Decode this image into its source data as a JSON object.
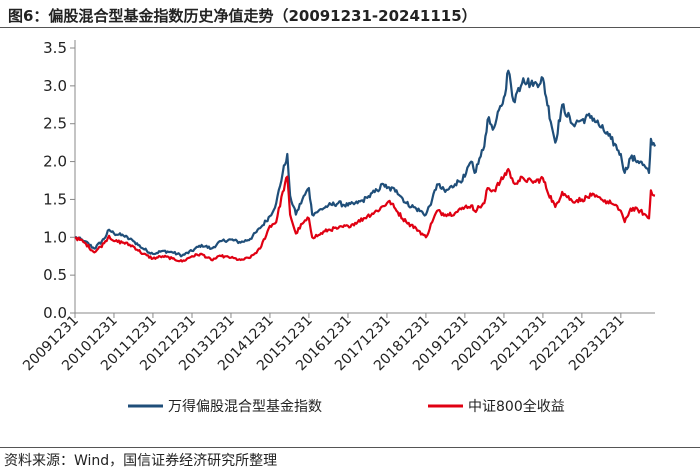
{
  "header": {
    "title": "图6：偏股混合型基金指数历史净值走势（20091231-20241115）"
  },
  "footer": {
    "source": "资料来源：Wind，国信证券经济研究所整理"
  },
  "colors": {
    "series1": "#1F4E79",
    "series2": "#E00012",
    "axis": "#888888"
  },
  "chart_data": {
    "type": "line",
    "title": "图6：偏股混合型基金指数历史净值走势（20091231-20241115）",
    "xlabel": "",
    "ylabel": "",
    "ylim": [
      0,
      3.5
    ],
    "yticks": [
      "0.0",
      "0.5",
      "1.0",
      "1.5",
      "2.0",
      "2.5",
      "3.0",
      "3.5"
    ],
    "xticks": [
      "20091231",
      "20101231",
      "20111231",
      "20121231",
      "20131231",
      "20141231",
      "20151231",
      "20161231",
      "20171231",
      "20181231",
      "20191231",
      "20201231",
      "20211231",
      "20221231",
      "20231231"
    ],
    "x_start": "2009-12-31",
    "x_end": "2024-11-15",
    "grid": false,
    "legend_position": "bottom",
    "series": [
      {
        "name": "万得偏股混合型基金指数",
        "points": [
          [
            "2009-12-31",
            1.0
          ],
          [
            "2010-03-31",
            0.95
          ],
          [
            "2010-06-30",
            0.85
          ],
          [
            "2010-09-30",
            0.98
          ],
          [
            "2010-11-15",
            1.1
          ],
          [
            "2010-12-31",
            1.05
          ],
          [
            "2011-03-31",
            1.02
          ],
          [
            "2011-06-30",
            0.95
          ],
          [
            "2011-09-30",
            0.85
          ],
          [
            "2011-12-31",
            0.78
          ],
          [
            "2012-03-31",
            0.82
          ],
          [
            "2012-06-30",
            0.8
          ],
          [
            "2012-09-30",
            0.76
          ],
          [
            "2012-12-31",
            0.82
          ],
          [
            "2013-03-31",
            0.9
          ],
          [
            "2013-06-30",
            0.85
          ],
          [
            "2013-09-30",
            0.95
          ],
          [
            "2013-12-31",
            0.97
          ],
          [
            "2014-03-31",
            0.93
          ],
          [
            "2014-06-30",
            0.98
          ],
          [
            "2014-09-30",
            1.12
          ],
          [
            "2014-12-31",
            1.28
          ],
          [
            "2015-02-28",
            1.45
          ],
          [
            "2015-04-30",
            1.85
          ],
          [
            "2015-06-12",
            2.1
          ],
          [
            "2015-07-08",
            1.55
          ],
          [
            "2015-08-31",
            1.3
          ],
          [
            "2015-10-31",
            1.5
          ],
          [
            "2015-12-31",
            1.65
          ],
          [
            "2016-01-31",
            1.3
          ],
          [
            "2016-03-31",
            1.35
          ],
          [
            "2016-06-30",
            1.42
          ],
          [
            "2016-09-30",
            1.45
          ],
          [
            "2016-12-31",
            1.42
          ],
          [
            "2017-03-31",
            1.45
          ],
          [
            "2017-06-30",
            1.52
          ],
          [
            "2017-09-30",
            1.62
          ],
          [
            "2017-11-30",
            1.7
          ],
          [
            "2017-12-31",
            1.65
          ],
          [
            "2018-03-31",
            1.62
          ],
          [
            "2018-06-30",
            1.45
          ],
          [
            "2018-09-30",
            1.38
          ],
          [
            "2018-12-31",
            1.3
          ],
          [
            "2019-02-28",
            1.5
          ],
          [
            "2019-04-15",
            1.7
          ],
          [
            "2019-06-30",
            1.6
          ],
          [
            "2019-09-30",
            1.7
          ],
          [
            "2019-12-31",
            1.8
          ],
          [
            "2020-02-28",
            2.0
          ],
          [
            "2020-03-31",
            1.85
          ],
          [
            "2020-06-30",
            2.2
          ],
          [
            "2020-07-31",
            2.55
          ],
          [
            "2020-09-30",
            2.45
          ],
          [
            "2020-12-31",
            2.85
          ],
          [
            "2021-02-10",
            3.2
          ],
          [
            "2021-03-31",
            2.8
          ],
          [
            "2021-06-30",
            3.1
          ],
          [
            "2021-09-30",
            3.0
          ],
          [
            "2021-12-31",
            3.1
          ],
          [
            "2022-01-31",
            2.85
          ],
          [
            "2022-04-26",
            2.25
          ],
          [
            "2022-06-30",
            2.75
          ],
          [
            "2022-09-30",
            2.5
          ],
          [
            "2022-12-31",
            2.55
          ],
          [
            "2023-03-31",
            2.6
          ],
          [
            "2023-06-30",
            2.45
          ],
          [
            "2023-09-30",
            2.3
          ],
          [
            "2023-12-31",
            2.1
          ],
          [
            "2024-02-05",
            1.85
          ],
          [
            "2024-03-31",
            2.05
          ],
          [
            "2024-06-30",
            2.0
          ],
          [
            "2024-09-20",
            1.85
          ],
          [
            "2024-10-08",
            2.3
          ],
          [
            "2024-11-15",
            2.2
          ]
        ]
      },
      {
        "name": "中证800全收益",
        "points": [
          [
            "2009-12-31",
            1.0
          ],
          [
            "2010-03-31",
            0.93
          ],
          [
            "2010-06-30",
            0.8
          ],
          [
            "2010-09-30",
            0.92
          ],
          [
            "2010-11-15",
            1.02
          ],
          [
            "2010-12-31",
            0.95
          ],
          [
            "2011-03-31",
            0.93
          ],
          [
            "2011-06-30",
            0.88
          ],
          [
            "2011-09-30",
            0.78
          ],
          [
            "2011-12-31",
            0.72
          ],
          [
            "2012-03-31",
            0.75
          ],
          [
            "2012-06-30",
            0.72
          ],
          [
            "2012-09-30",
            0.68
          ],
          [
            "2012-12-31",
            0.75
          ],
          [
            "2013-03-31",
            0.78
          ],
          [
            "2013-06-30",
            0.7
          ],
          [
            "2013-09-30",
            0.75
          ],
          [
            "2013-12-31",
            0.73
          ],
          [
            "2014-03-31",
            0.7
          ],
          [
            "2014-06-30",
            0.73
          ],
          [
            "2014-09-30",
            0.85
          ],
          [
            "2014-12-31",
            1.15
          ],
          [
            "2015-02-28",
            1.2
          ],
          [
            "2015-04-30",
            1.6
          ],
          [
            "2015-06-12",
            1.8
          ],
          [
            "2015-07-08",
            1.3
          ],
          [
            "2015-08-31",
            1.05
          ],
          [
            "2015-10-31",
            1.18
          ],
          [
            "2015-12-31",
            1.25
          ],
          [
            "2016-01-31",
            1.0
          ],
          [
            "2016-03-31",
            1.03
          ],
          [
            "2016-06-30",
            1.1
          ],
          [
            "2016-09-30",
            1.12
          ],
          [
            "2016-12-31",
            1.15
          ],
          [
            "2017-03-31",
            1.2
          ],
          [
            "2017-06-30",
            1.28
          ],
          [
            "2017-09-30",
            1.35
          ],
          [
            "2017-12-31",
            1.45
          ],
          [
            "2018-01-25",
            1.48
          ],
          [
            "2018-03-31",
            1.35
          ],
          [
            "2018-06-30",
            1.2
          ],
          [
            "2018-09-30",
            1.12
          ],
          [
            "2018-12-31",
            1.0
          ],
          [
            "2019-02-28",
            1.2
          ],
          [
            "2019-04-15",
            1.35
          ],
          [
            "2019-06-30",
            1.3
          ],
          [
            "2019-09-30",
            1.32
          ],
          [
            "2019-12-31",
            1.4
          ],
          [
            "2020-02-28",
            1.42
          ],
          [
            "2020-03-31",
            1.35
          ],
          [
            "2020-06-30",
            1.45
          ],
          [
            "2020-07-31",
            1.65
          ],
          [
            "2020-09-30",
            1.62
          ],
          [
            "2020-12-31",
            1.8
          ],
          [
            "2021-02-10",
            1.9
          ],
          [
            "2021-03-31",
            1.72
          ],
          [
            "2021-06-30",
            1.78
          ],
          [
            "2021-09-30",
            1.72
          ],
          [
            "2021-12-31",
            1.78
          ],
          [
            "2022-01-31",
            1.65
          ],
          [
            "2022-04-26",
            1.4
          ],
          [
            "2022-06-30",
            1.6
          ],
          [
            "2022-09-30",
            1.48
          ],
          [
            "2022-12-31",
            1.5
          ],
          [
            "2023-03-31",
            1.55
          ],
          [
            "2023-06-30",
            1.5
          ],
          [
            "2023-09-30",
            1.45
          ],
          [
            "2023-12-31",
            1.35
          ],
          [
            "2024-02-05",
            1.2
          ],
          [
            "2024-03-31",
            1.38
          ],
          [
            "2024-06-30",
            1.35
          ],
          [
            "2024-09-20",
            1.25
          ],
          [
            "2024-10-08",
            1.62
          ],
          [
            "2024-11-15",
            1.55
          ]
        ]
      }
    ]
  }
}
